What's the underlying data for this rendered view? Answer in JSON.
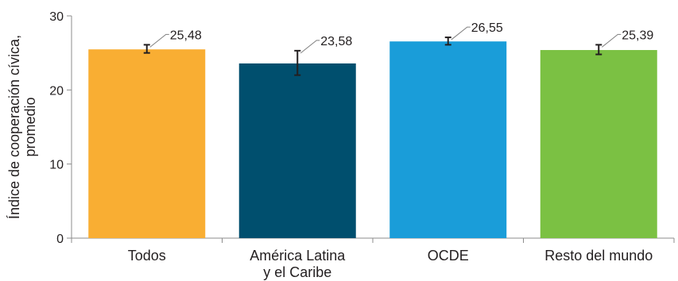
{
  "chart_data": {
    "type": "bar",
    "categories": [
      [
        "Todos"
      ],
      [
        "América Latina",
        "y el Caribe"
      ],
      [
        "OCDE"
      ],
      [
        "Resto del mundo"
      ]
    ],
    "values": [
      25.48,
      23.58,
      26.55,
      25.39
    ],
    "value_labels": [
      "25,48",
      "23,58",
      "26,55",
      "25,39"
    ],
    "error_bars": [
      {
        "low": 25.0,
        "high": 26.1
      },
      {
        "low": 22.0,
        "high": 25.3
      },
      {
        "low": 26.1,
        "high": 27.1
      },
      {
        "low": 24.8,
        "high": 26.1
      }
    ],
    "colors": [
      "#f9ae33",
      "#004f6e",
      "#1a9dd9",
      "#7bc143"
    ],
    "ylabel": [
      "Índice de cooperación cívica,",
      "promedio"
    ],
    "ylim": [
      0,
      30
    ],
    "yticks": [
      0,
      10,
      20,
      30
    ],
    "grid": false,
    "legend": "none"
  }
}
